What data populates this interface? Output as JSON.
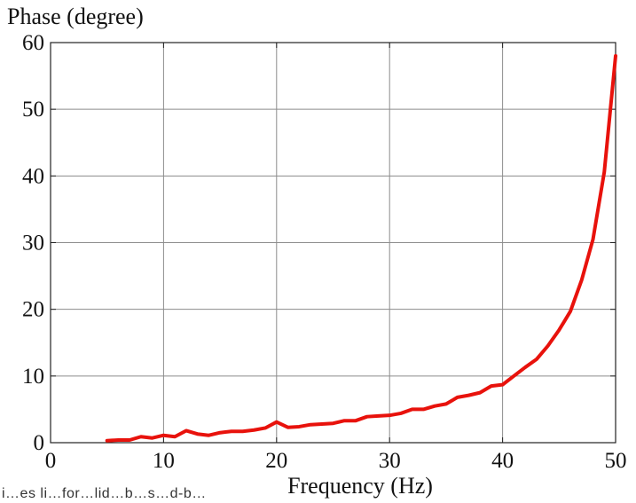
{
  "chart_data": {
    "type": "line",
    "title": "",
    "xlabel": "Frequency (Hz)",
    "ylabel": "Phase (degree)",
    "xlim": [
      0,
      50
    ],
    "ylim": [
      0,
      60
    ],
    "x_ticks": [
      "0",
      "10",
      "20",
      "30",
      "40",
      "50"
    ],
    "y_ticks": [
      "0",
      "10",
      "20",
      "30",
      "40",
      "50",
      "60"
    ],
    "grid": true,
    "legend": "none",
    "series": [
      {
        "color": "#e8120c",
        "x": [
          5,
          6,
          7,
          8,
          9,
          10,
          11,
          12,
          13,
          14,
          15,
          16,
          17,
          18,
          19,
          20,
          21,
          22,
          23,
          24,
          25,
          26,
          27,
          28,
          29,
          30,
          31,
          32,
          33,
          34,
          35,
          36,
          37,
          38,
          39,
          40,
          41,
          42,
          43,
          44,
          45,
          46,
          47,
          48,
          49,
          50
        ],
        "y": [
          0.3,
          0.4,
          0.4,
          0.9,
          0.7,
          1.1,
          0.9,
          1.8,
          1.3,
          1.1,
          1.5,
          1.7,
          1.7,
          1.9,
          2.2,
          3.1,
          2.3,
          2.4,
          2.7,
          2.8,
          2.9,
          3.3,
          3.3,
          3.9,
          4.0,
          4.1,
          4.4,
          5.0,
          5.0,
          5.5,
          5.8,
          6.8,
          7.1,
          7.5,
          8.5,
          8.7,
          10.0,
          11.3,
          12.5,
          14.5,
          16.9,
          19.7,
          24.4,
          30.5,
          40.6,
          58.0
        ]
      }
    ]
  },
  "footer_fragment": "i…es li…for…lid…b…s…d-b…"
}
